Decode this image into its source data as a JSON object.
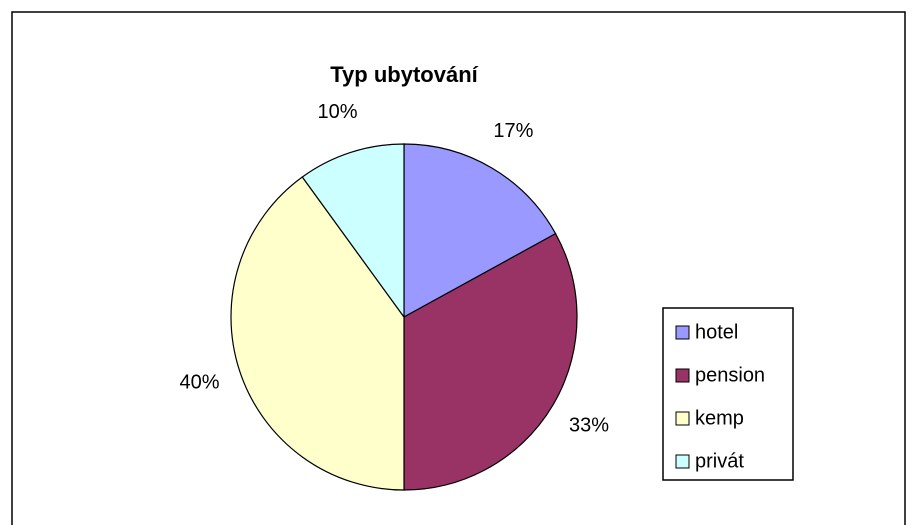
{
  "chart_data": {
    "type": "pie",
    "title": "Typ ubytování",
    "categories": [
      "hotel",
      "pension",
      "kemp",
      "privát"
    ],
    "values": [
      17,
      33,
      40,
      10
    ],
    "value_labels": [
      "17%",
      "33%",
      "40%",
      "10%"
    ],
    "colors": [
      "#9999ff",
      "#993366",
      "#ffffcc",
      "#ccffff"
    ],
    "legend": "right"
  }
}
